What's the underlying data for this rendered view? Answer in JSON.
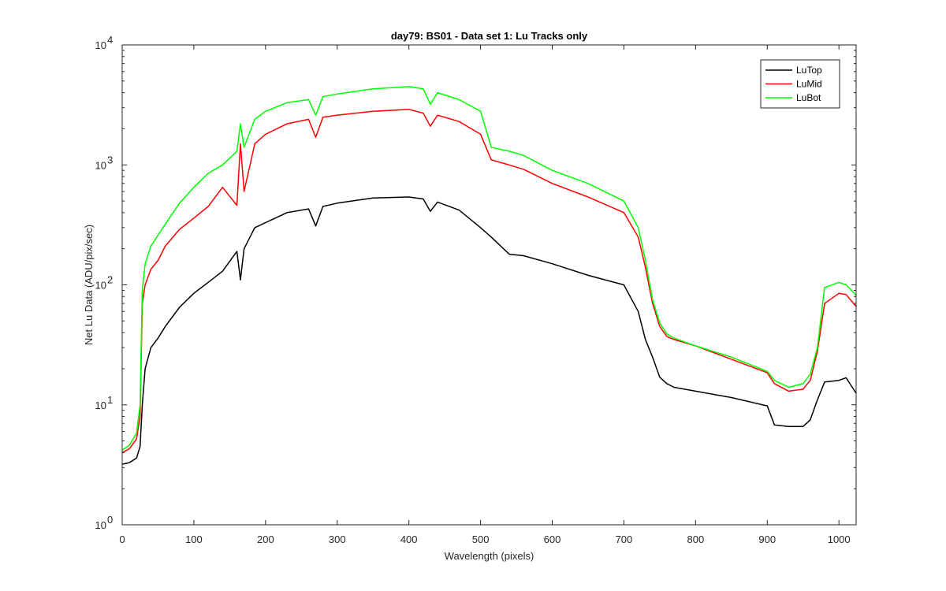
{
  "chart_data": {
    "type": "line",
    "title": "day79: BS01 - Data set 1: Lu Tracks only",
    "xlabel": "Wavelength (pixels)",
    "ylabel": "Net Lu Data (ADU/pix/sec)",
    "xlim": [
      0,
      1024
    ],
    "ylim": [
      1,
      10000
    ],
    "yscale": "log",
    "grid": false,
    "legend_position": "top-right",
    "x_ticks": [
      0,
      100,
      200,
      300,
      400,
      500,
      600,
      700,
      800,
      900,
      1000
    ],
    "x_tick_labels": [
      "0",
      "100",
      "200",
      "300",
      "400",
      "500",
      "600",
      "700",
      "800",
      "900",
      "1000"
    ],
    "y_ticks": [
      1,
      10,
      100,
      1000,
      10000
    ],
    "y_tick_labels": [
      {
        "base": "10",
        "exp": "0"
      },
      {
        "base": "10",
        "exp": "1"
      },
      {
        "base": "10",
        "exp": "2"
      },
      {
        "base": "10",
        "exp": "3"
      },
      {
        "base": "10",
        "exp": "4"
      }
    ],
    "x": [
      0,
      10,
      20,
      25,
      28,
      32,
      40,
      50,
      60,
      80,
      100,
      120,
      140,
      160,
      165,
      170,
      185,
      200,
      230,
      260,
      270,
      280,
      300,
      350,
      400,
      420,
      430,
      440,
      470,
      500,
      515,
      540,
      560,
      600,
      650,
      700,
      720,
      730,
      740,
      750,
      760,
      770,
      800,
      850,
      900,
      910,
      930,
      950,
      960,
      970,
      980,
      1000,
      1010,
      1024
    ],
    "series": [
      {
        "name": "LuTop",
        "color": "#000000",
        "values": [
          3.2,
          3.3,
          3.6,
          4.5,
          10,
          20,
          30,
          36,
          45,
          65,
          85,
          105,
          130,
          190,
          110,
          200,
          300,
          330,
          400,
          430,
          310,
          450,
          480,
          530,
          540,
          520,
          410,
          490,
          420,
          300,
          250,
          180,
          175,
          150,
          120,
          100,
          60,
          35,
          25,
          17,
          15,
          14,
          13,
          11.5,
          9.8,
          6.8,
          6.6,
          6.6,
          7.5,
          11,
          15.5,
          16,
          16.8,
          12.5
        ]
      },
      {
        "name": "LuMid",
        "color": "#ff0000",
        "values": [
          4,
          4.3,
          5.2,
          8,
          70,
          100,
          135,
          160,
          210,
          290,
          360,
          450,
          650,
          460,
          1500,
          600,
          1500,
          1800,
          2200,
          2400,
          1700,
          2500,
          2600,
          2800,
          2900,
          2700,
          2100,
          2600,
          2300,
          1800,
          1100,
          1000,
          920,
          700,
          540,
          400,
          250,
          140,
          70,
          45,
          37,
          35,
          31,
          24,
          18.5,
          15,
          13,
          13.5,
          16,
          28,
          70,
          85,
          83,
          66
        ]
      },
      {
        "name": "LuBot",
        "color": "#00ff00",
        "values": [
          4.2,
          4.6,
          5.8,
          10,
          90,
          150,
          210,
          260,
          320,
          480,
          650,
          850,
          1000,
          1300,
          2200,
          1400,
          2400,
          2800,
          3300,
          3500,
          2600,
          3700,
          3900,
          4300,
          4500,
          4300,
          3200,
          4000,
          3500,
          2800,
          1400,
          1300,
          1200,
          900,
          700,
          500,
          300,
          160,
          75,
          48,
          39,
          36,
          31,
          25,
          19,
          16,
          14,
          15,
          18,
          30,
          95,
          105,
          100,
          82
        ]
      }
    ]
  }
}
